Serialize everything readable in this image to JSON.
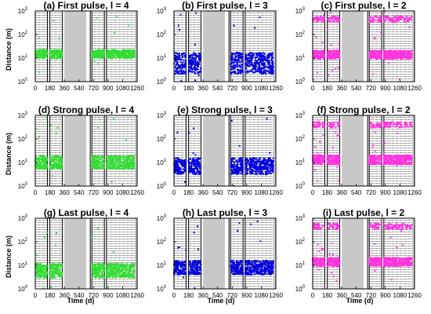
{
  "figure": {
    "ylabel": "Distance (m)",
    "xlabel": "Time (d)"
  },
  "colors": {
    "green": "#33dd33",
    "blue": "#0000dd",
    "magenta": "#ff33dd",
    "gap": "#c8c8c8",
    "frame": "#000000"
  },
  "chart_data": [
    {
      "type": "scatter",
      "title": "(a) First pulse, l = 4",
      "color": "green",
      "series": [
        {
          "values": []
        }
      ],
      "cluster_y": [
        [
          15
        ]
      ],
      "cluster_w": [
        0.18
      ]
    },
    {
      "type": "scatter",
      "title": "(b) First pulse, l = 3",
      "color": "blue",
      "series": [
        {
          "values": []
        }
      ],
      "cluster_y": [
        [
          6
        ]
      ],
      "cluster_w": [
        0.45
      ]
    },
    {
      "type": "scatter",
      "title": "(c) First pulse, l = 2",
      "color": "magenta",
      "series": [
        {
          "values": []
        }
      ],
      "cluster_y": [
        [
          14
        ],
        [
          450
        ]
      ],
      "cluster_w": [
        0.18,
        0.18
      ]
    },
    {
      "type": "scatter",
      "title": "(d) Strong pulse, l = 4",
      "color": "green",
      "series": [
        {
          "values": []
        }
      ],
      "cluster_y": [
        [
          10
        ]
      ],
      "cluster_w": [
        0.28
      ]
    },
    {
      "type": "scatter",
      "title": "(e) Strong pulse, l = 3",
      "color": "blue",
      "series": [
        {
          "values": []
        }
      ],
      "cluster_y": [
        [
          7
        ]
      ],
      "cluster_w": [
        0.35
      ]
    },
    {
      "type": "scatter",
      "title": "(f) Strong pulse, l = 2",
      "color": "magenta",
      "series": [
        {
          "values": []
        }
      ],
      "cluster_y": [
        [
          13
        ],
        [
          400
        ]
      ],
      "cluster_w": [
        0.2,
        0.18
      ]
    },
    {
      "type": "scatter",
      "title": "(g) Last pulse, l = 4",
      "color": "green",
      "series": [
        {
          "values": []
        }
      ],
      "cluster_y": [
        [
          6
        ]
      ],
      "cluster_w": [
        0.3
      ]
    },
    {
      "type": "scatter",
      "title": "(h) Last pulse, l = 3",
      "color": "blue",
      "series": [
        {
          "values": []
        }
      ],
      "cluster_y": [
        [
          8
        ]
      ],
      "cluster_w": [
        0.3
      ]
    },
    {
      "type": "scatter",
      "title": "(i) Last pulse, l = 2",
      "color": "magenta",
      "series": [
        {
          "values": []
        }
      ],
      "cluster_y": [
        [
          14
        ],
        [
          450
        ]
      ],
      "cluster_w": [
        0.18,
        0.18
      ]
    }
  ],
  "axes": {
    "x_ticks": [
      "0",
      "180",
      "360",
      "540",
      "720",
      "900",
      "1080",
      "1260"
    ],
    "x_range": [
      0,
      1260
    ],
    "y_range": [
      1,
      1000
    ],
    "y_scale": "log",
    "y_tick_base": "10",
    "y_tick_exponents": [
      "0",
      "1",
      "2",
      "3"
    ],
    "gaps": [
      [
        360,
        630
      ],
      [
        1260,
        1260
      ]
    ],
    "vlines": [
      150,
      180,
      335,
      680,
      700,
      855,
      880
    ],
    "stripe_ranges": [
      [
        0,
        150
      ],
      [
        180,
        335
      ],
      [
        700,
        855
      ],
      [
        880,
        1260
      ]
    ]
  }
}
